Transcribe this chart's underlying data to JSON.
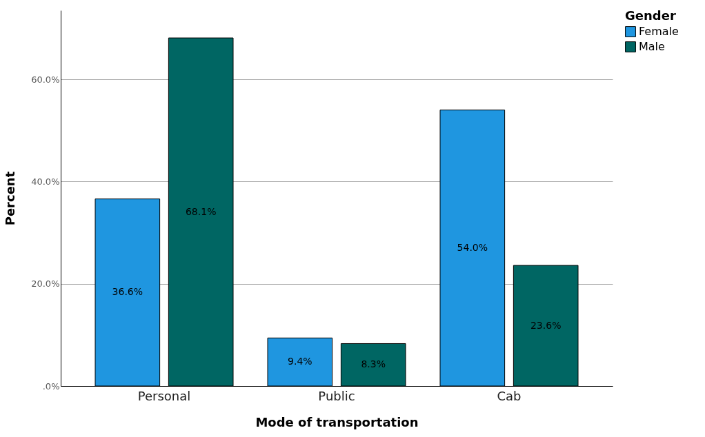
{
  "chart_data": {
    "type": "bar",
    "xlabel": "Mode of transportation",
    "ylabel": "Percent",
    "legend_title": "Gender",
    "categories": [
      "Personal",
      "Public",
      "Cab"
    ],
    "series": [
      {
        "name": "Female",
        "color": "#1f96e0",
        "values": [
          36.6,
          9.4,
          54.0
        ],
        "value_labels": [
          "36.6%",
          "9.4%",
          "54.0%"
        ]
      },
      {
        "name": "Male",
        "color": "#006663",
        "values": [
          68.1,
          8.3,
          23.6
        ],
        "value_labels": [
          "68.1%",
          "8.3%",
          "23.6%"
        ]
      }
    ],
    "ylim": [
      0,
      73.5
    ],
    "yticks": [
      {
        "value": 0,
        "label": ".0%"
      },
      {
        "value": 20,
        "label": "20.0%"
      },
      {
        "value": 40,
        "label": "40.0%"
      },
      {
        "value": 60,
        "label": "60.0%"
      }
    ],
    "grid": "y",
    "legend": "top right"
  }
}
